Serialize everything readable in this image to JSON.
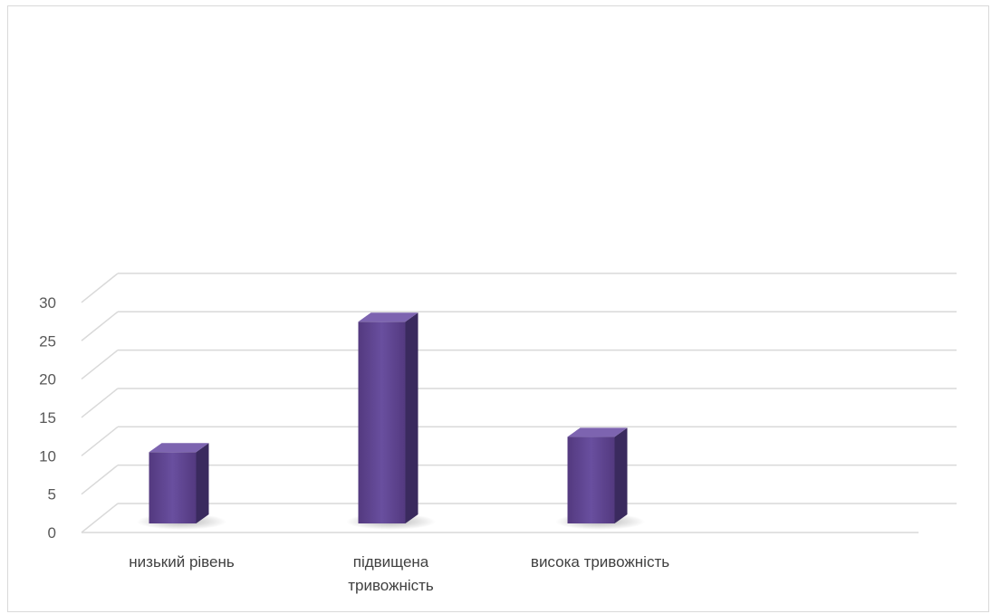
{
  "chart_data": {
    "type": "bar",
    "style": "3d-column",
    "categories": [
      [
        "низький рівень"
      ],
      [
        "підвищена",
        "тривожність"
      ],
      [
        "висока тривожність"
      ]
    ],
    "values": [
      10,
      27,
      12
    ],
    "ylim": [
      0,
      30
    ],
    "yticks": [
      0,
      5,
      10,
      15,
      20,
      25,
      30
    ],
    "grid": true,
    "legend": "none",
    "colors": {
      "bar_front": "#5e4691",
      "bar_side": "#3a2a5e",
      "bar_top": "#7d64b0",
      "grid": "#d9d9d9",
      "tick_text": "#595959",
      "label_text": "#404040"
    }
  }
}
